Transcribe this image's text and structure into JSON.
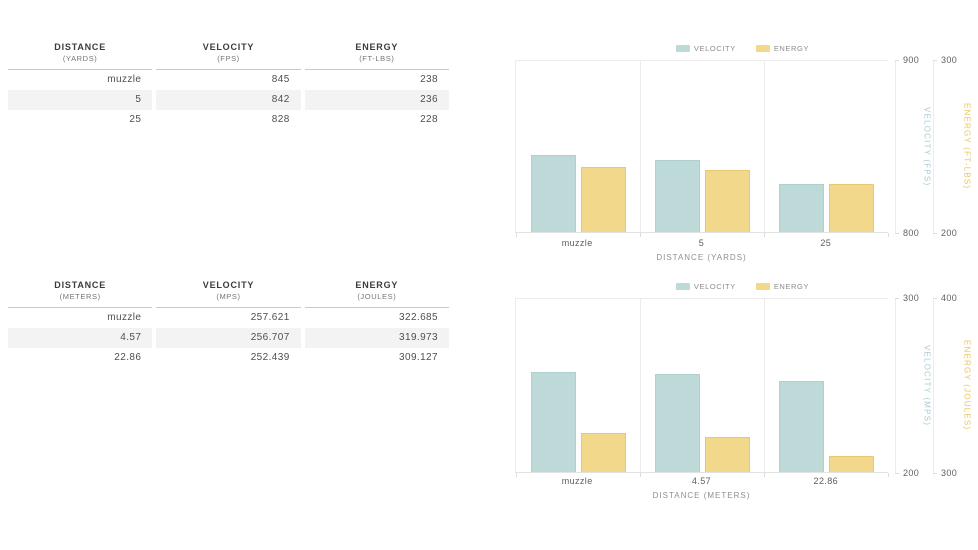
{
  "tables": [
    {
      "columns": [
        {
          "label": "DISTANCE",
          "unit": "(YARDS)"
        },
        {
          "label": "VELOCITY",
          "unit": "(FPS)"
        },
        {
          "label": "ENERGY",
          "unit": "(FT-LBS)"
        }
      ],
      "rows": [
        [
          "muzzle",
          "845",
          "238"
        ],
        [
          "5",
          "842",
          "236"
        ],
        [
          "25",
          "828",
          "228"
        ]
      ]
    },
    {
      "columns": [
        {
          "label": "DISTANCE",
          "unit": "(METERS)"
        },
        {
          "label": "VELOCITY",
          "unit": "(MPS)"
        },
        {
          "label": "ENERGY",
          "unit": "(JOULES)"
        }
      ],
      "rows": [
        [
          "muzzle",
          "257.621",
          "322.685"
        ],
        [
          "4.57",
          "256.707",
          "319.973"
        ],
        [
          "22.86",
          "252.439",
          "309.127"
        ]
      ]
    }
  ],
  "chart_data": [
    {
      "type": "bar",
      "categories": [
        "muzzle",
        "5",
        "25"
      ],
      "series": [
        {
          "name": "VELOCITY",
          "values": [
            845,
            842,
            828
          ],
          "axis": "left",
          "color": "#bedad8",
          "border_color": "#aed1ce"
        },
        {
          "name": "ENERGY",
          "values": [
            238,
            236,
            228
          ],
          "axis": "right",
          "color": "#f2d88b",
          "border_color": "#e9c873"
        }
      ],
      "left_axis": {
        "label": "VELOCITY (FPS)",
        "min": 800,
        "max": 900,
        "label_color": "#a8ccd3"
      },
      "right_axis": {
        "label": "ENERGY (FT-LBS)",
        "min": 200,
        "max": 300,
        "label_color": "#ecc45f"
      },
      "xlabel": "DISTANCE (YARDS)",
      "legend_position": "top",
      "grid": "vertical category separators, top rule, bottom axis"
    },
    {
      "type": "bar",
      "categories": [
        "muzzle",
        "4.57",
        "22.86"
      ],
      "series": [
        {
          "name": "VELOCITY",
          "values": [
            257.621,
            256.707,
            252.439
          ],
          "axis": "left",
          "color": "#bedad8",
          "border_color": "#aed1ce"
        },
        {
          "name": "ENERGY",
          "values": [
            322.685,
            319.973,
            309.127
          ],
          "axis": "right",
          "color": "#f2d88b",
          "border_color": "#e9c873"
        }
      ],
      "left_axis": {
        "label": "VELOCITY (MPS)",
        "min": 200,
        "max": 300,
        "label_color": "#a8ccd3"
      },
      "right_axis": {
        "label": "ENERGY (JOULES)",
        "min": 300,
        "max": 400,
        "label_color": "#ecc45f"
      },
      "xlabel": "DISTANCE (METERS)",
      "legend_position": "top",
      "grid": "vertical category separators, top rule, bottom axis"
    }
  ],
  "colors": {
    "velocity_fill": "#bedad8",
    "velocity_border": "#aed1ce",
    "velocity_axis_text": "#a8ccd3",
    "energy_fill": "#f2d88b",
    "energy_border": "#e9c873",
    "energy_axis_text": "#ecc45f",
    "grid_line": "#ececec",
    "table_stripe": "#f3f3f3"
  }
}
